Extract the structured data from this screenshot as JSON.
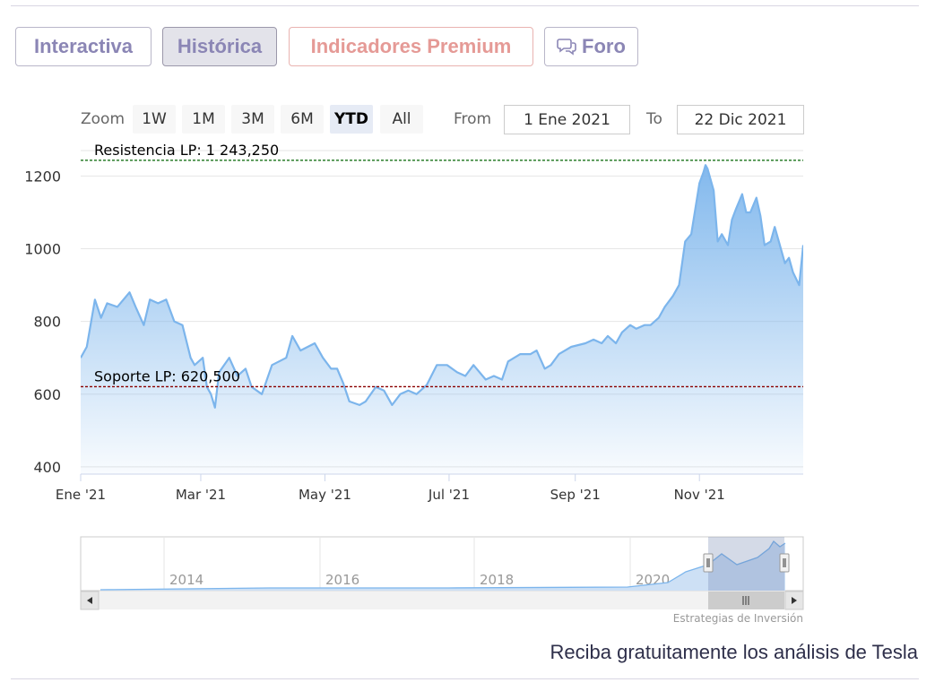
{
  "tabs": {
    "interactiva": "Interactiva",
    "historica": "Histórica",
    "premium": "Indicadores Premium",
    "foro": "Foro",
    "foro_icon": "chat-bubbles-icon"
  },
  "range_selector": {
    "zoom_label": "Zoom",
    "buttons": [
      "1W",
      "1M",
      "3M",
      "6M",
      "YTD",
      "All"
    ],
    "selected": "YTD",
    "from_label": "From",
    "from_value": "1 Ene 2021",
    "to_label": "To",
    "to_value": "22 Dic 2021"
  },
  "chart_data": {
    "type": "area",
    "title": "",
    "ylim": [
      380,
      1270
    ],
    "yticks": [
      400,
      600,
      800,
      1000,
      1200
    ],
    "x_ticks": [
      "Ene '21",
      "Mar '21",
      "May '21",
      "Jul '21",
      "Sep '21",
      "Nov '21"
    ],
    "series": [
      {
        "color": "#7cb5ec",
        "points": [
          [
            "2021-01-01",
            700
          ],
          [
            "2021-01-04",
            730
          ],
          [
            "2021-01-08",
            860
          ],
          [
            "2021-01-11",
            810
          ],
          [
            "2021-01-14",
            850
          ],
          [
            "2021-01-19",
            840
          ],
          [
            "2021-01-25",
            880
          ],
          [
            "2021-01-28",
            840
          ],
          [
            "2021-02-01",
            790
          ],
          [
            "2021-02-04",
            860
          ],
          [
            "2021-02-08",
            850
          ],
          [
            "2021-02-12",
            860
          ],
          [
            "2021-02-16",
            800
          ],
          [
            "2021-02-20",
            790
          ],
          [
            "2021-02-24",
            700
          ],
          [
            "2021-02-26",
            680
          ],
          [
            "2021-03-02",
            700
          ],
          [
            "2021-03-04",
            620
          ],
          [
            "2021-03-06",
            600
          ],
          [
            "2021-03-08",
            563
          ],
          [
            "2021-03-10",
            660
          ],
          [
            "2021-03-15",
            700
          ],
          [
            "2021-03-19",
            650
          ],
          [
            "2021-03-23",
            670
          ],
          [
            "2021-03-26",
            620
          ],
          [
            "2021-03-31",
            600
          ],
          [
            "2021-04-05",
            680
          ],
          [
            "2021-04-12",
            700
          ],
          [
            "2021-04-15",
            760
          ],
          [
            "2021-04-19",
            720
          ],
          [
            "2021-04-26",
            740
          ],
          [
            "2021-04-30",
            700
          ],
          [
            "2021-05-04",
            670
          ],
          [
            "2021-05-07",
            670
          ],
          [
            "2021-05-10",
            630
          ],
          [
            "2021-05-13",
            580
          ],
          [
            "2021-05-18",
            570
          ],
          [
            "2021-05-21",
            580
          ],
          [
            "2021-05-26",
            620
          ],
          [
            "2021-05-30",
            610
          ],
          [
            "2021-06-03",
            570
          ],
          [
            "2021-06-07",
            600
          ],
          [
            "2021-06-11",
            610
          ],
          [
            "2021-06-15",
            600
          ],
          [
            "2021-06-20",
            625
          ],
          [
            "2021-06-25",
            680
          ],
          [
            "2021-06-30",
            680
          ],
          [
            "2021-07-05",
            660
          ],
          [
            "2021-07-09",
            650
          ],
          [
            "2021-07-13",
            680
          ],
          [
            "2021-07-19",
            640
          ],
          [
            "2021-07-23",
            650
          ],
          [
            "2021-07-27",
            640
          ],
          [
            "2021-07-30",
            690
          ],
          [
            "2021-08-05",
            710
          ],
          [
            "2021-08-10",
            710
          ],
          [
            "2021-08-13",
            720
          ],
          [
            "2021-08-17",
            670
          ],
          [
            "2021-08-20",
            680
          ],
          [
            "2021-08-24",
            710
          ],
          [
            "2021-08-30",
            730
          ],
          [
            "2021-09-06",
            740
          ],
          [
            "2021-09-10",
            750
          ],
          [
            "2021-09-14",
            740
          ],
          [
            "2021-09-17",
            760
          ],
          [
            "2021-09-21",
            740
          ],
          [
            "2021-09-24",
            770
          ],
          [
            "2021-09-28",
            790
          ],
          [
            "2021-10-01",
            780
          ],
          [
            "2021-10-05",
            790
          ],
          [
            "2021-10-08",
            790
          ],
          [
            "2021-10-12",
            810
          ],
          [
            "2021-10-15",
            840
          ],
          [
            "2021-10-19",
            870
          ],
          [
            "2021-10-22",
            900
          ],
          [
            "2021-10-25",
            1020
          ],
          [
            "2021-10-28",
            1040
          ],
          [
            "2021-11-01",
            1180
          ],
          [
            "2021-11-03",
            1210
          ],
          [
            "2021-11-04",
            1230
          ],
          [
            "2021-11-05",
            1220
          ],
          [
            "2021-11-08",
            1160
          ],
          [
            "2021-11-10",
            1020
          ],
          [
            "2021-11-12",
            1040
          ],
          [
            "2021-11-15",
            1010
          ],
          [
            "2021-11-17",
            1080
          ],
          [
            "2021-11-19",
            1110
          ],
          [
            "2021-11-22",
            1150
          ],
          [
            "2021-11-24",
            1100
          ],
          [
            "2021-11-26",
            1100
          ],
          [
            "2021-11-29",
            1140
          ],
          [
            "2021-12-01",
            1090
          ],
          [
            "2021-12-03",
            1010
          ],
          [
            "2021-12-06",
            1020
          ],
          [
            "2021-12-08",
            1060
          ],
          [
            "2021-12-10",
            1020
          ],
          [
            "2021-12-13",
            960
          ],
          [
            "2021-12-15",
            975
          ],
          [
            "2021-12-17",
            935
          ],
          [
            "2021-12-20",
            900
          ],
          [
            "2021-12-22",
            1010
          ]
        ]
      }
    ],
    "plot_lines": [
      {
        "label": "Resistencia LP: 1 243,250",
        "value": 1243.25,
        "color": "#006400"
      },
      {
        "label": "Soporte LP: 620,500",
        "value": 620.5,
        "color": "#8b0000"
      }
    ],
    "navigator": {
      "years": [
        "2014",
        "2016",
        "2018",
        "2020"
      ]
    }
  },
  "credit": "Estrategias de Inversión",
  "cta": "Reciba gratuitamente los análisis de Tesla",
  "colors": {
    "tab_text": "#8b86b5",
    "premium_text": "#e59a96",
    "series": "#7cb5ec",
    "cta": "#2e2f4a"
  }
}
